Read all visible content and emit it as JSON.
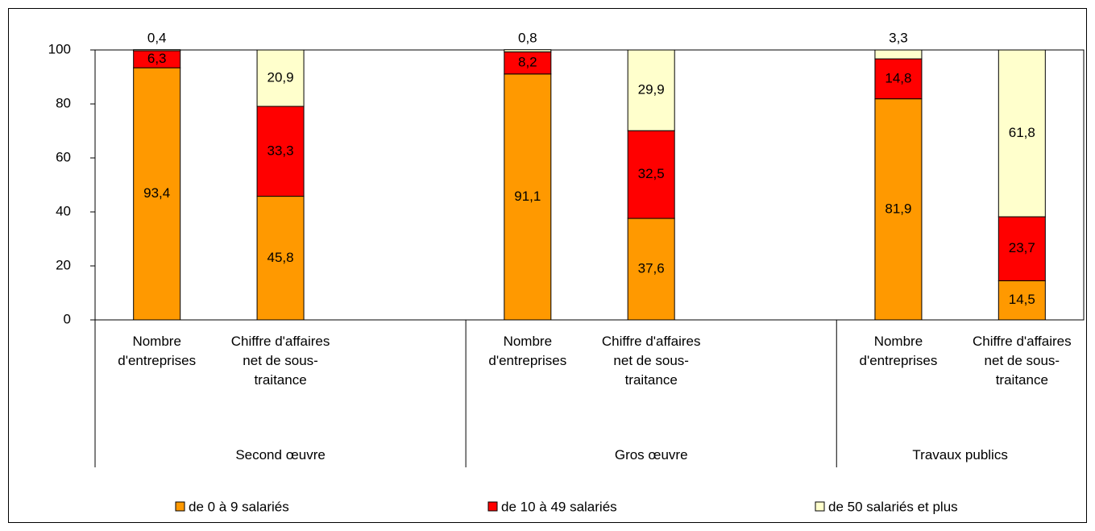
{
  "chart_data": {
    "type": "stacked_bar",
    "categories": [
      "Nombre d'entreprises",
      "Chiffre d'affaires net de sous-traitance",
      "Nombre d'entreprises",
      "Chiffre d'affaires net de sous-traitance",
      "Nombre d'entreprises",
      "Chiffre d'affaires net de sous-traitance"
    ],
    "groups": [
      "Second œuvre",
      "Gros œuvre",
      "Travaux publics"
    ],
    "series": [
      {
        "name": "de 0 à 9 salariés",
        "color": "#ff9900",
        "values": [
          93.4,
          45.8,
          91.1,
          37.6,
          81.9,
          14.5
        ],
        "value_labels": [
          "93,4",
          "45,8",
          "91,1",
          "37,6",
          "81,9",
          "14,5"
        ]
      },
      {
        "name": "de 10 à 49 salariés",
        "color": "#ff0000",
        "values": [
          6.3,
          33.3,
          8.2,
          32.5,
          14.8,
          23.7
        ],
        "value_labels": [
          "6,3",
          "33,3",
          "8,2",
          "32,5",
          "14,8",
          "23,7"
        ]
      },
      {
        "name": "de 50 salariés et plus",
        "color": "#ffffcc",
        "values": [
          0.4,
          20.9,
          0.8,
          29.9,
          3.3,
          61.8
        ],
        "value_labels": [
          "0,4",
          "20,9",
          "0,8",
          "29,9",
          "3,3",
          "61,8"
        ]
      }
    ],
    "ylim": [
      0,
      100
    ],
    "yticks": [
      0,
      20,
      40,
      60,
      80,
      100
    ],
    "grid": false,
    "legend": "bottom"
  }
}
